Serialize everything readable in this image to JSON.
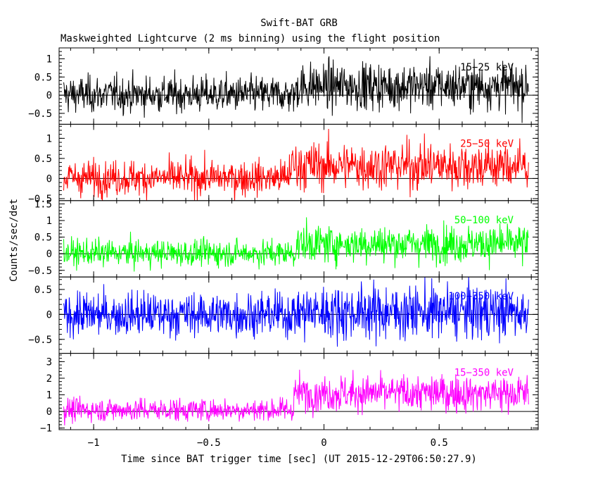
{
  "chart_data": {
    "type": "line",
    "title": "Swift-BAT GRB",
    "subtitle": "Maskweighted Lightcurve (2 ms binning) using the flight position",
    "xlabel": "Time since BAT trigger time [sec] (UT 2015-12-29T06:50:27.9)",
    "ylabel": "Counts/sec/det",
    "xlim": [
      -1.15,
      0.93
    ],
    "x_ticks": [
      -1,
      -0.5,
      0,
      0.5
    ],
    "x_tick_labels": [
      "−1",
      "−0.5",
      "0",
      "0.5"
    ],
    "bin_width_s": 0.002,
    "t_start": -1.13,
    "t_end": 0.89,
    "grid": false,
    "panels": [
      {
        "name": "15−25 keV",
        "color": "#000000",
        "ylim": [
          -0.8,
          1.3
        ],
        "yticks": [
          -0.5,
          0,
          0.5,
          1
        ],
        "ytick_labels": [
          "−0.5",
          "0",
          "0.5",
          "1"
        ],
        "pre_level": 0.02,
        "post_level": 0.25,
        "pre_sigma": 0.25,
        "post_sigma": 0.32,
        "rise_time": -0.12
      },
      {
        "name": "25−50 keV",
        "color": "#ff0000",
        "ylim": [
          -0.55,
          1.35
        ],
        "yticks": [
          -0.5,
          0,
          0.5,
          1
        ],
        "ytick_labels": [
          "−0.5",
          "0",
          "0.5",
          "1"
        ],
        "pre_level": 0.02,
        "post_level": 0.32,
        "pre_sigma": 0.22,
        "post_sigma": 0.3,
        "rise_time": -0.15
      },
      {
        "name": "50−100 keV",
        "color": "#00ff00",
        "ylim": [
          -0.7,
          1.6
        ],
        "yticks": [
          -0.5,
          0,
          0.5,
          1,
          1.5
        ],
        "ytick_labels": [
          "−0.5",
          "0",
          "0.5",
          "1",
          "1.5"
        ],
        "pre_level": 0.02,
        "post_level": 0.3,
        "pre_sigma": 0.2,
        "post_sigma": 0.28,
        "rise_time": -0.12
      },
      {
        "name": "100−350 keV",
        "color": "#0000ff",
        "ylim": [
          -0.78,
          0.75
        ],
        "yticks": [
          -0.5,
          0,
          0.5
        ],
        "ytick_labels": [
          "−0.5",
          "0",
          "0.5"
        ],
        "pre_level": 0.0,
        "post_level": 0.05,
        "pre_sigma": 0.22,
        "post_sigma": 0.27,
        "rise_time": -0.12
      },
      {
        "name": "15−350 keV",
        "color": "#ff00ff",
        "ylim": [
          -1.1,
          3.5
        ],
        "yticks": [
          -1,
          0,
          1,
          2,
          3
        ],
        "ytick_labels": [
          "−1",
          "0",
          "1",
          "2",
          "3"
        ],
        "pre_level": 0.1,
        "post_level": 1.1,
        "pre_sigma": 0.35,
        "post_sigma": 0.55,
        "rise_time": -0.13
      }
    ]
  }
}
